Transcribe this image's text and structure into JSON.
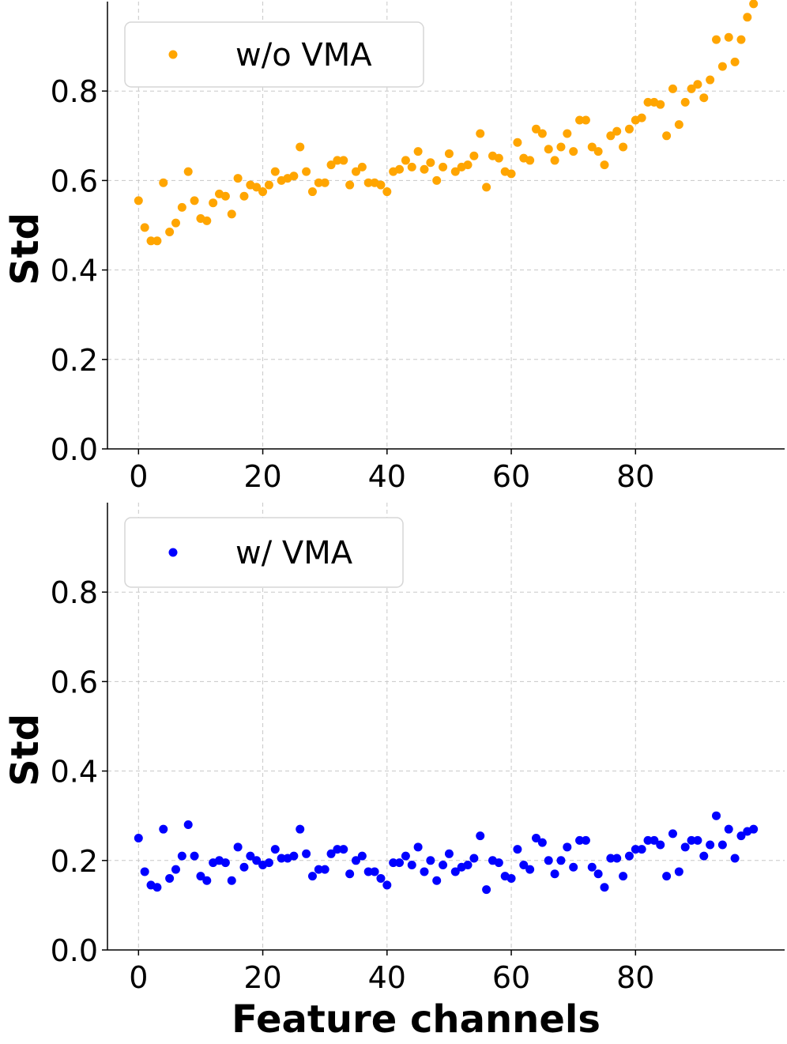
{
  "chart_data": [
    {
      "type": "scatter",
      "title": "",
      "xlabel": "",
      "ylabel": "Std",
      "xlim": [
        -5,
        104
      ],
      "ylim": [
        0,
        1.0
      ],
      "xticks": [
        0,
        20,
        40,
        60,
        80
      ],
      "yticks": [
        0.0,
        0.2,
        0.4,
        0.6,
        0.8
      ],
      "xtick_labels": [
        "0",
        "20",
        "40",
        "60",
        "80"
      ],
      "ytick_labels": [
        "0.0",
        "0.2",
        "0.4",
        "0.6",
        "0.8"
      ],
      "grid": true,
      "legend_position": "top-left",
      "series": [
        {
          "name": "w/o VMA",
          "color": "#FFA500",
          "x": [
            0,
            1,
            2,
            3,
            4,
            5,
            6,
            7,
            8,
            9,
            10,
            11,
            12,
            13,
            14,
            15,
            16,
            17,
            18,
            19,
            20,
            21,
            22,
            23,
            24,
            25,
            26,
            27,
            28,
            29,
            30,
            31,
            32,
            33,
            34,
            35,
            36,
            37,
            38,
            39,
            40,
            41,
            42,
            43,
            44,
            45,
            46,
            47,
            48,
            49,
            50,
            51,
            52,
            53,
            54,
            55,
            56,
            57,
            58,
            59,
            60,
            61,
            62,
            63,
            64,
            65,
            66,
            67,
            68,
            69,
            70,
            71,
            72,
            73,
            74,
            75,
            76,
            77,
            78,
            79,
            80,
            81,
            82,
            83,
            84,
            85,
            86,
            87,
            88,
            89,
            90,
            91,
            92,
            93,
            94,
            95,
            96,
            97,
            98,
            99
          ],
          "y": [
            0.555,
            0.495,
            0.465,
            0.465,
            0.595,
            0.485,
            0.505,
            0.54,
            0.62,
            0.555,
            0.515,
            0.51,
            0.55,
            0.57,
            0.565,
            0.525,
            0.605,
            0.565,
            0.59,
            0.585,
            0.575,
            0.59,
            0.62,
            0.6,
            0.605,
            0.61,
            0.675,
            0.62,
            0.575,
            0.595,
            0.595,
            0.635,
            0.645,
            0.645,
            0.59,
            0.62,
            0.63,
            0.595,
            0.595,
            0.59,
            0.575,
            0.62,
            0.625,
            0.645,
            0.63,
            0.665,
            0.625,
            0.64,
            0.6,
            0.63,
            0.66,
            0.62,
            0.63,
            0.635,
            0.655,
            0.705,
            0.585,
            0.655,
            0.65,
            0.62,
            0.615,
            0.685,
            0.65,
            0.645,
            0.715,
            0.705,
            0.67,
            0.645,
            0.675,
            0.705,
            0.665,
            0.735,
            0.735,
            0.675,
            0.665,
            0.635,
            0.7,
            0.71,
            0.675,
            0.715,
            0.735,
            0.74,
            0.775,
            0.775,
            0.77,
            0.7,
            0.805,
            0.725,
            0.775,
            0.805,
            0.815,
            0.785,
            0.825,
            0.915,
            0.855,
            0.92,
            0.865,
            0.915,
            0.965,
            0.995
          ]
        }
      ]
    },
    {
      "type": "scatter",
      "title": "",
      "xlabel": "Feature channels",
      "ylabel": "Std",
      "xlim": [
        -5,
        104
      ],
      "ylim": [
        0,
        1.0
      ],
      "xticks": [
        0,
        20,
        40,
        60,
        80
      ],
      "yticks": [
        0.0,
        0.2,
        0.4,
        0.6,
        0.8
      ],
      "xtick_labels": [
        "0",
        "20",
        "40",
        "60",
        "80"
      ],
      "ytick_labels": [
        "0.0",
        "0.2",
        "0.4",
        "0.6",
        "0.8"
      ],
      "grid": true,
      "legend_position": "top-left",
      "series": [
        {
          "name": "w/ VMA",
          "color": "#0000FF",
          "x": [
            0,
            1,
            2,
            3,
            4,
            5,
            6,
            7,
            8,
            9,
            10,
            11,
            12,
            13,
            14,
            15,
            16,
            17,
            18,
            19,
            20,
            21,
            22,
            23,
            24,
            25,
            26,
            27,
            28,
            29,
            30,
            31,
            32,
            33,
            34,
            35,
            36,
            37,
            38,
            39,
            40,
            41,
            42,
            43,
            44,
            45,
            46,
            47,
            48,
            49,
            50,
            51,
            52,
            53,
            54,
            55,
            56,
            57,
            58,
            59,
            60,
            61,
            62,
            63,
            64,
            65,
            66,
            67,
            68,
            69,
            70,
            71,
            72,
            73,
            74,
            75,
            76,
            77,
            78,
            79,
            80,
            81,
            82,
            83,
            84,
            85,
            86,
            87,
            88,
            89,
            90,
            91,
            92,
            93,
            94,
            95,
            96,
            97,
            98,
            99
          ],
          "y": [
            0.25,
            0.175,
            0.145,
            0.14,
            0.27,
            0.16,
            0.18,
            0.21,
            0.28,
            0.21,
            0.165,
            0.155,
            0.195,
            0.2,
            0.195,
            0.155,
            0.23,
            0.185,
            0.21,
            0.2,
            0.19,
            0.195,
            0.225,
            0.205,
            0.205,
            0.21,
            0.27,
            0.215,
            0.165,
            0.18,
            0.18,
            0.215,
            0.225,
            0.225,
            0.17,
            0.2,
            0.21,
            0.175,
            0.175,
            0.16,
            0.145,
            0.195,
            0.195,
            0.21,
            0.19,
            0.23,
            0.175,
            0.2,
            0.155,
            0.19,
            0.215,
            0.175,
            0.185,
            0.19,
            0.205,
            0.255,
            0.135,
            0.2,
            0.195,
            0.165,
            0.16,
            0.225,
            0.19,
            0.18,
            0.25,
            0.24,
            0.2,
            0.17,
            0.2,
            0.23,
            0.185,
            0.245,
            0.245,
            0.185,
            0.17,
            0.14,
            0.205,
            0.205,
            0.165,
            0.21,
            0.225,
            0.225,
            0.245,
            0.245,
            0.235,
            0.165,
            0.26,
            0.175,
            0.23,
            0.245,
            0.245,
            0.21,
            0.235,
            0.3,
            0.235,
            0.27,
            0.205,
            0.255,
            0.265,
            0.27
          ]
        }
      ]
    }
  ]
}
